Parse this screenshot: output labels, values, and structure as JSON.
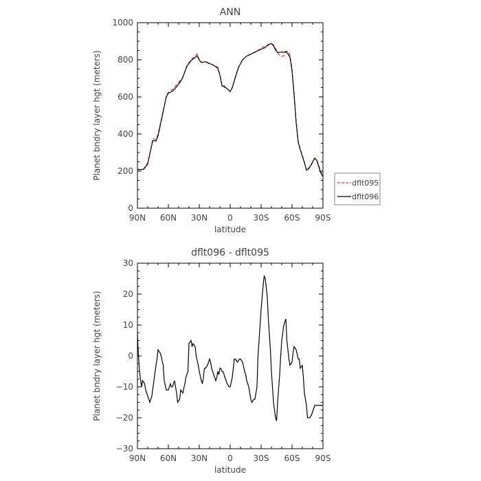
{
  "chart_data": [
    {
      "type": "line",
      "title": "ANN",
      "xlabel": "latitude",
      "ylabel": "Planet bndry layer hgt (meters)",
      "xlim": [
        90,
        -90
      ],
      "ylim": [
        0,
        1000
      ],
      "x_ticks": [
        90,
        60,
        30,
        0,
        -30,
        -60,
        -90
      ],
      "x_tick_labels": [
        "90N",
        "60N",
        "30N",
        "0",
        "30S",
        "60S",
        "90S"
      ],
      "y_ticks": [
        0,
        200,
        400,
        600,
        800,
        1000
      ],
      "y_tick_labels": [
        "0",
        "200",
        "400",
        "600",
        "800",
        "1000"
      ],
      "legend_position": "right-bottom, outside plot",
      "x": [
        90,
        86,
        84,
        80,
        77,
        75,
        72,
        70,
        66,
        62,
        60,
        56,
        52,
        48,
        46,
        42,
        38,
        35,
        32,
        30,
        28,
        24,
        20,
        16,
        12,
        10,
        8,
        6,
        2,
        0,
        -2,
        -5,
        -8,
        -12,
        -16,
        -20,
        -24,
        -28,
        -32,
        -34,
        -36,
        -38,
        -40,
        -42,
        -44,
        -46,
        -48,
        -50,
        -52,
        -54,
        -56,
        -58,
        -60,
        -62,
        -64,
        -66,
        -68,
        -70,
        -72,
        -74,
        -76,
        -78,
        -80,
        -82,
        -84,
        -86,
        -88,
        -90
      ],
      "series": [
        {
          "name": "dflt095",
          "color": "#e03030",
          "dash": "dashed",
          "values": [
            205,
            212,
            212,
            245,
            320,
            375,
            370,
            400,
            500,
            605,
            625,
            640,
            665,
            692,
            705,
            770,
            800,
            815,
            832,
            800,
            785,
            788,
            778,
            772,
            760,
            720,
            665,
            660,
            640,
            630,
            650,
            710,
            760,
            800,
            820,
            832,
            840,
            855,
            870,
            870,
            875,
            882,
            887,
            882,
            862,
            840,
            822,
            818,
            822,
            840,
            848,
            825,
            750,
            620,
            470,
            360,
            320,
            285,
            248,
            205,
            210,
            225,
            248,
            268,
            262,
            230,
            195,
            175
          ]
        },
        {
          "name": "dflt096",
          "color": "#000000",
          "dash": "solid",
          "values": [
            210,
            208,
            210,
            238,
            318,
            365,
            362,
            390,
            495,
            600,
            620,
            630,
            655,
            685,
            705,
            765,
            795,
            808,
            822,
            800,
            785,
            790,
            780,
            770,
            755,
            718,
            660,
            655,
            640,
            628,
            650,
            705,
            758,
            800,
            820,
            830,
            842,
            852,
            862,
            865,
            878,
            884,
            888,
            876,
            852,
            840,
            840,
            842,
            840,
            845,
            832,
            815,
            740,
            610,
            460,
            355,
            315,
            280,
            245,
            205,
            215,
            228,
            250,
            270,
            258,
            222,
            190,
            170
          ]
        }
      ]
    },
    {
      "type": "line",
      "title": "dflt096 - dflt095",
      "xlabel": "latitude",
      "ylabel": "Planet bndry layer hgt (meters)",
      "xlim": [
        90,
        -90
      ],
      "ylim": [
        -30,
        30
      ],
      "x_ticks": [
        90,
        60,
        30,
        0,
        -30,
        -60,
        -90
      ],
      "x_tick_labels": [
        "90N",
        "60N",
        "30N",
        "0",
        "30S",
        "60S",
        "90S"
      ],
      "y_ticks": [
        -30,
        -20,
        -10,
        0,
        10,
        20,
        30
      ],
      "y_tick_labels": [
        "−30",
        "−20",
        "−10",
        "0",
        "10",
        "20",
        "30"
      ],
      "x": [
        90,
        89,
        88,
        86,
        85,
        83,
        82,
        81,
        79,
        78,
        76,
        74,
        72,
        71,
        70,
        68,
        67,
        65,
        64,
        62,
        60,
        58,
        57,
        56,
        55,
        54,
        52,
        51,
        49,
        48,
        46,
        44,
        43,
        42,
        41,
        40,
        38,
        37,
        36,
        34,
        33,
        31,
        30,
        28,
        27,
        26,
        25,
        24,
        22,
        20,
        19,
        18,
        16,
        14,
        13,
        12,
        11,
        10,
        9,
        8,
        7,
        6,
        4,
        3,
        1,
        0,
        -2,
        -4,
        -5,
        -7,
        -9,
        -10,
        -12,
        -14,
        -15,
        -16,
        -18,
        -20,
        -21,
        -23,
        -24,
        -26,
        -27,
        -29,
        -30,
        -32,
        -33,
        -34,
        -36,
        -37,
        -39,
        -40,
        -42,
        -44,
        -45,
        -46,
        -48,
        -49,
        -50,
        -52,
        -54,
        -55,
        -57,
        -58,
        -60,
        -61,
        -62,
        -64,
        -66,
        -67,
        -68,
        -70,
        -71,
        -72,
        -74,
        -75,
        -77,
        -79,
        -80,
        -82,
        -83,
        -84,
        -86,
        -87,
        -88,
        -90
      ],
      "series": [
        {
          "name": "dflt096 - dflt095",
          "color": "#000000",
          "dash": "solid",
          "values": [
            7,
            0,
            -5,
            -10,
            -8,
            -9,
            -11,
            -12,
            -14,
            -15,
            -13,
            -8,
            -3,
            -1,
            2,
            1,
            0,
            -3,
            -8,
            -11,
            -11,
            -9,
            -10,
            -10,
            -9,
            -8,
            -12,
            -15,
            -14,
            -11,
            -12,
            -9,
            -7,
            -6,
            -5,
            4,
            5,
            3,
            4,
            3,
            0,
            -3,
            -5,
            -8,
            -9,
            -7,
            -4,
            -4,
            -3,
            -1,
            -2,
            -4,
            -6,
            -8,
            -7,
            -5,
            -6,
            -4,
            -4,
            -5,
            -5,
            -6,
            -8,
            -9,
            -10,
            -10,
            -7,
            -1,
            -1,
            -2,
            -1,
            -1,
            -2,
            -5,
            -6,
            -8,
            -10,
            -14,
            -15,
            -14,
            -14,
            -10,
            0,
            10,
            15,
            23,
            26,
            25,
            19,
            12,
            2,
            -5,
            -15,
            -20,
            -21,
            -15,
            -6,
            0,
            5,
            10,
            12,
            5,
            -1,
            -3,
            -2,
            1,
            3,
            2,
            -1,
            -1,
            -4,
            -3,
            -7,
            -12,
            -16,
            -20,
            -20,
            -19,
            -18,
            -16,
            -16,
            -16,
            -16,
            -16,
            -16,
            -16
          ]
        }
      ]
    }
  ]
}
